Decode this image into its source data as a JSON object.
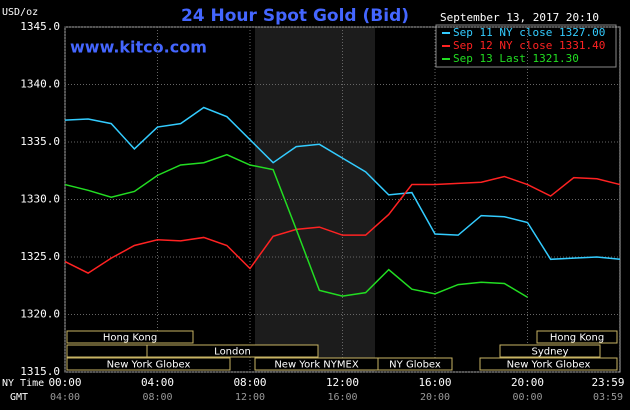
{
  "chart_data": {
    "type": "line",
    "title": "24 Hour Spot Gold (Bid)",
    "site": "www.kitco.com",
    "unit_label": "USD/oz",
    "timestamp": "September 13, 2017 20:10",
    "x": [
      0,
      1,
      2,
      3,
      4,
      5,
      6,
      7,
      8,
      9,
      10,
      11,
      12,
      13,
      14,
      15,
      16,
      17,
      18,
      19,
      20,
      21,
      22,
      23,
      24
    ],
    "xlim": [
      0,
      24
    ],
    "xticks": [
      {
        "value": 0,
        "label": "00:00"
      },
      {
        "value": 4,
        "label": "04:00"
      },
      {
        "value": 8,
        "label": "08:00"
      },
      {
        "value": 12,
        "label": "12:00"
      },
      {
        "value": 16,
        "label": "16:00"
      },
      {
        "value": 20,
        "label": "20:00"
      },
      {
        "value": 23.98,
        "label": "23:59"
      }
    ],
    "gmt_labels": [
      "04:00",
      "08:00",
      "12:00",
      "16:00",
      "20:00",
      "00:00",
      "03:59"
    ],
    "x_label_ny": "NY Time",
    "x_label_gmt": "GMT",
    "ylim": [
      1315,
      1345
    ],
    "yticks": [
      {
        "value": 1315,
        "label": "1315.0"
      },
      {
        "value": 1320,
        "label": "1320.0"
      },
      {
        "value": 1325,
        "label": "1325.0"
      },
      {
        "value": 1330,
        "label": "1330.0"
      },
      {
        "value": 1335,
        "label": "1335.0"
      },
      {
        "value": 1340,
        "label": "1340.0"
      },
      {
        "value": 1345,
        "label": "1345.0"
      }
    ],
    "grid": true,
    "series": [
      {
        "name": "Sep 11 NY close 1327.00",
        "color": "#33ccff",
        "values": [
          1336.9,
          1337.0,
          1336.6,
          1334.4,
          1336.3,
          1336.6,
          1338.0,
          1337.2,
          1335.2,
          1333.2,
          1334.6,
          1334.8,
          1333.6,
          1332.4,
          1330.4,
          1330.6,
          1327.0,
          1326.9,
          1328.6,
          1328.5,
          1328.0,
          1324.8,
          1324.9,
          1325.0,
          1324.8
        ]
      },
      {
        "name": "Sep 12 NY close 1331.40",
        "color": "#ff2222",
        "values": [
          1324.6,
          1323.6,
          1324.9,
          1326.0,
          1326.5,
          1326.4,
          1326.7,
          1326.0,
          1324.0,
          1326.8,
          1327.4,
          1327.6,
          1326.9,
          1326.9,
          1328.7,
          1331.3,
          1331.3,
          1331.4,
          1331.5,
          1332.0,
          1331.3,
          1330.3,
          1331.9,
          1331.8,
          1331.3
        ]
      },
      {
        "name": "Sep 13 Last 1321.30",
        "color": "#22dd22",
        "values": [
          1331.3,
          1330.8,
          1330.2,
          1330.7,
          1332.1,
          1333.0,
          1333.2,
          1333.9,
          1333.0,
          1332.6,
          1327.4,
          1322.1,
          1321.6,
          1321.9,
          1323.9,
          1322.2,
          1321.8,
          1322.6,
          1322.8,
          1322.7,
          1321.5,
          null,
          null,
          null,
          null
        ]
      }
    ],
    "sessions": [
      "Hong Kong",
      "Hong Kong",
      "",
      "London",
      "Sydney",
      "New York Globex",
      "New York NYMEX",
      "NY Globex",
      "New York Globex"
    ]
  }
}
